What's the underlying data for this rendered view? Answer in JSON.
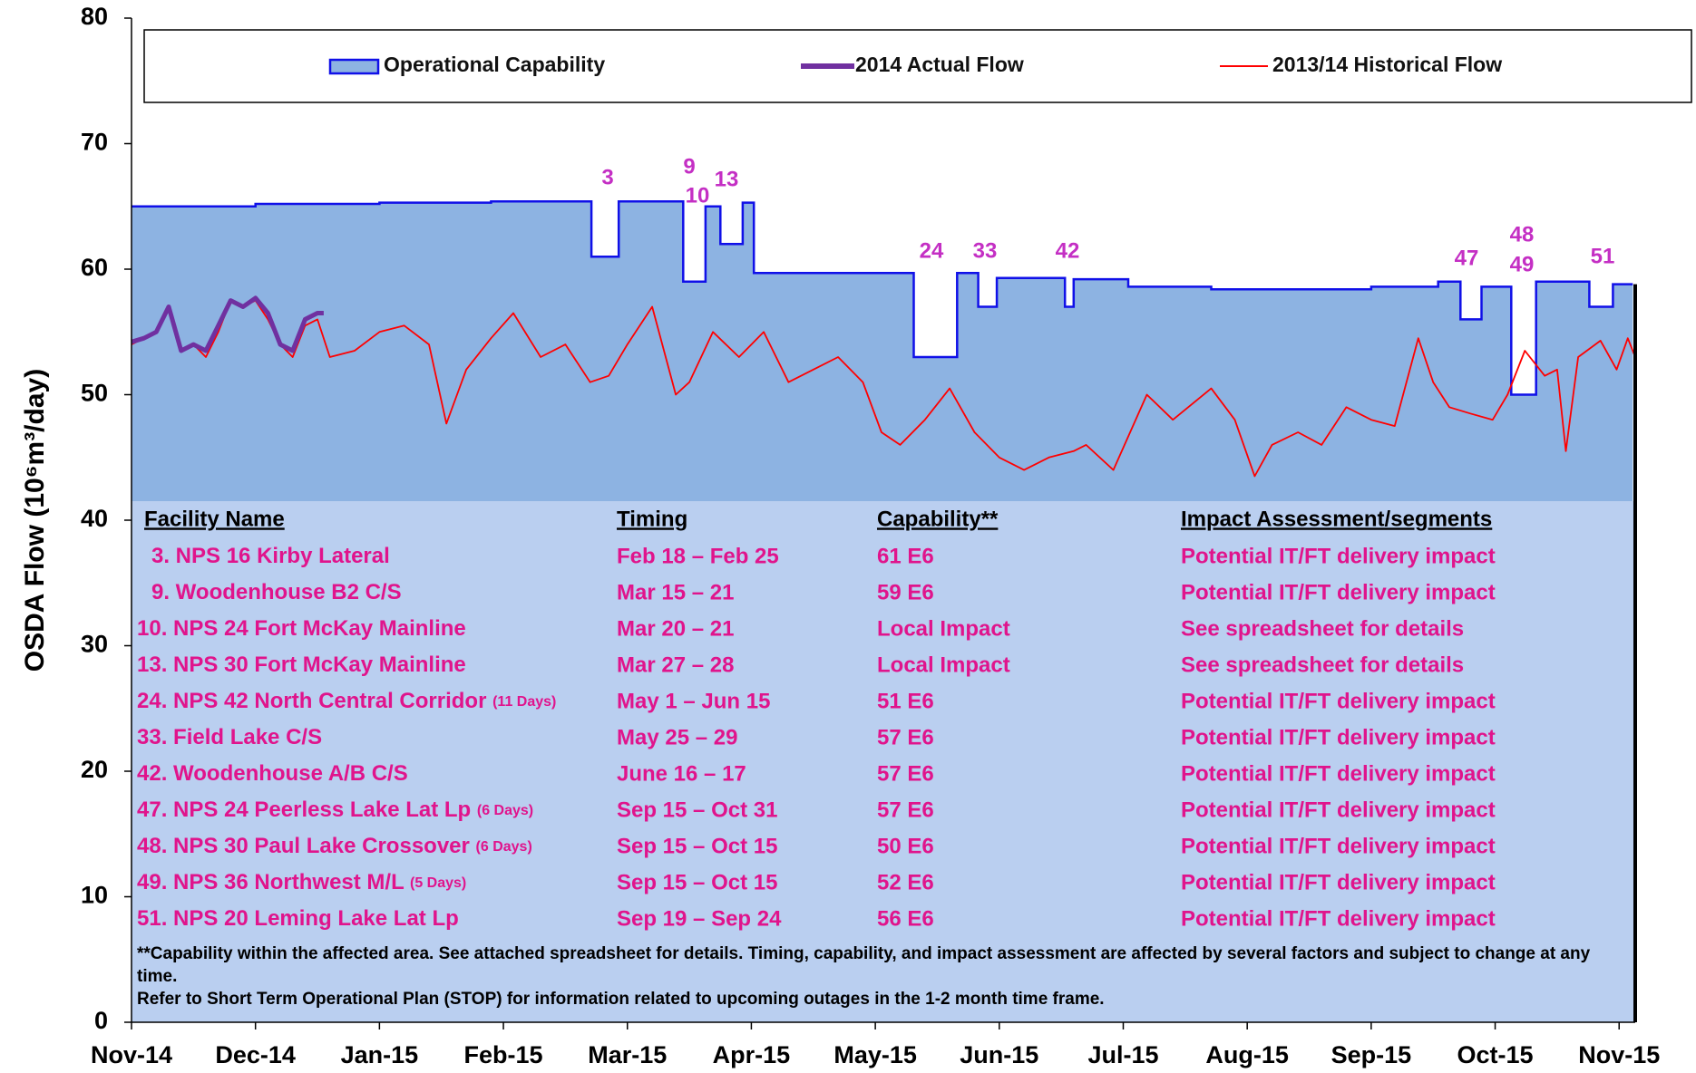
{
  "chart_data": {
    "type": "line",
    "y_label": "OSDA Flow (10⁶m³/day)",
    "xlim": [
      0,
      12.13
    ],
    "xticks": [
      {
        "value": 0,
        "label": "Nov-14"
      },
      {
        "value": 1,
        "label": "Dec-14"
      },
      {
        "value": 2,
        "label": "Jan-15"
      },
      {
        "value": 3,
        "label": "Feb-15"
      },
      {
        "value": 4,
        "label": "Mar-15"
      },
      {
        "value": 5,
        "label": "Apr-15"
      },
      {
        "value": 6,
        "label": "May-15"
      },
      {
        "value": 7,
        "label": "Jun-15"
      },
      {
        "value": 8,
        "label": "Jul-15"
      },
      {
        "value": 9,
        "label": "Aug-15"
      },
      {
        "value": 10,
        "label": "Sep-15"
      },
      {
        "value": 11,
        "label": "Oct-15"
      },
      {
        "value": 12,
        "label": "Nov-15"
      }
    ],
    "ylim": [
      0,
      80
    ],
    "yticks": [
      0,
      10,
      20,
      30,
      40,
      50,
      60,
      70,
      80
    ],
    "series": [
      {
        "name": "Operational Capability",
        "color": "#1010e8",
        "fill": "#8db3e2",
        "kind": "area",
        "x": [
          0,
          1.0,
          1.0,
          2.0,
          2.0,
          2.9,
          2.9,
          3.71,
          3.71,
          3.93,
          3.93,
          4.45,
          4.45,
          4.63,
          4.63,
          4.75,
          4.75,
          4.93,
          4.93,
          5.02,
          5.02,
          6.31,
          6.31,
          6.66,
          6.66,
          6.83,
          6.83,
          6.98,
          6.98,
          7.53,
          7.53,
          7.6,
          7.6,
          8.04,
          8.04,
          8.71,
          8.71,
          10.0,
          10.0,
          10.54,
          10.54,
          10.72,
          10.72,
          10.89,
          10.89,
          11.13,
          11.13,
          11.33,
          11.33,
          11.76,
          11.76,
          11.95,
          11.95,
          12.11
        ],
        "values": [
          65,
          65,
          65.2,
          65.2,
          65.3,
          65.3,
          65.4,
          65.4,
          61,
          61,
          65.4,
          65.4,
          59,
          59,
          65,
          65,
          62,
          62,
          65.3,
          65.3,
          59.7,
          59.7,
          53,
          53,
          59.7,
          59.7,
          57,
          57,
          59.3,
          59.3,
          57,
          57,
          59.2,
          59.2,
          58.6,
          58.6,
          58.4,
          58.4,
          58.6,
          58.6,
          59,
          59,
          56,
          56,
          58.6,
          58.6,
          50,
          50,
          59,
          59,
          57,
          57,
          58.8,
          58.8
        ]
      },
      {
        "name": "2014 Actual Flow",
        "color": "#7030a0",
        "kind": "line",
        "width": 5,
        "x": [
          0,
          0.1,
          0.2,
          0.3,
          0.4,
          0.5,
          0.6,
          0.7,
          0.8,
          0.9,
          1.0,
          1.1,
          1.2,
          1.3,
          1.4,
          1.5,
          1.55
        ],
        "values": [
          54.2,
          54.5,
          55,
          57,
          53.5,
          54,
          53.5,
          55.5,
          57.5,
          57,
          57.7,
          56.5,
          54,
          53.5,
          56,
          56.5,
          56.5
        ]
      },
      {
        "name": "2013/14 Historical Flow",
        "color": "#ff0000",
        "kind": "line",
        "width": 1.8,
        "x": [
          0,
          0.1,
          0.2,
          0.3,
          0.4,
          0.5,
          0.6,
          0.7,
          0.8,
          0.9,
          1.0,
          1.1,
          1.2,
          1.3,
          1.4,
          1.5,
          1.6,
          1.8,
          2.0,
          2.2,
          2.4,
          2.54,
          2.7,
          2.9,
          3.08,
          3.3,
          3.5,
          3.7,
          3.85,
          4.0,
          4.2,
          4.39,
          4.5,
          4.69,
          4.9,
          5.1,
          5.3,
          5.5,
          5.7,
          5.9,
          6.05,
          6.2,
          6.4,
          6.6,
          6.8,
          7.0,
          7.2,
          7.4,
          7.6,
          7.7,
          7.92,
          8.19,
          8.4,
          8.71,
          8.9,
          9.06,
          9.2,
          9.41,
          9.6,
          9.8,
          10.0,
          10.19,
          10.38,
          10.5,
          10.63,
          10.8,
          10.98,
          11.1,
          11.24,
          11.4,
          11.5,
          11.57,
          11.67,
          11.85,
          11.98,
          12.07,
          12.13
        ],
        "values": [
          54,
          54.5,
          55,
          57,
          53.5,
          54,
          53,
          55,
          57.5,
          57,
          57.5,
          56,
          54,
          53,
          55.5,
          56,
          53,
          53.5,
          55,
          55.5,
          54,
          47.7,
          52,
          54.5,
          56.5,
          53,
          54,
          51,
          51.5,
          54,
          57,
          50,
          51,
          55,
          53,
          55,
          51,
          52,
          53,
          51,
          47,
          46,
          48,
          50.5,
          47,
          45,
          44,
          45,
          45.5,
          46,
          44,
          50,
          48,
          50.5,
          48,
          43.5,
          46,
          47,
          46,
          49,
          48,
          47.5,
          54.5,
          51,
          49,
          48.5,
          48,
          50,
          53.5,
          51.5,
          52,
          45.5,
          53,
          54.3,
          52,
          54.5,
          53
        ]
      }
    ],
    "annotations": [
      "3",
      "9",
      "10",
      "13",
      "24",
      "33",
      "42",
      "47",
      "48",
      "49",
      "51"
    ]
  },
  "table": {
    "header": [
      "Facility Name",
      "Timing",
      "Capability**",
      "Impact Assessment/segments"
    ],
    "rows": [
      {
        "name": "3. NPS 16 Kirby Lateral",
        "timing": "Feb 18 – Feb 25",
        "capability": "61 E6",
        "impact": "Potential IT/FT delivery impact"
      },
      {
        "name": "9. Woodenhouse B2 C/S",
        "timing": "Mar 15 – 21",
        "capability": "59 E6",
        "impact": "Potential IT/FT delivery impact"
      },
      {
        "name": "10. NPS 24 Fort McKay Mainline",
        "timing": "Mar 20 – 21",
        "capability": "Local Impact",
        "impact": "See spreadsheet for details"
      },
      {
        "name": "13. NPS 30 Fort McKay Mainline",
        "timing": "Mar 27 – 28",
        "capability": "Local Impact",
        "impact": "See spreadsheet for details"
      },
      {
        "name": "24. NPS 42 North Central Corridor",
        "days": "(11 Days)",
        "timing": "May 1 – Jun 15",
        "capability": "51 E6",
        "impact": "Potential IT/FT delivery impact"
      },
      {
        "name": "33. Field Lake C/S",
        "timing": "May 25 – 29",
        "capability": "57 E6",
        "impact": "Potential IT/FT delivery impact"
      },
      {
        "name": "42. Woodenhouse A/B C/S",
        "timing": "June 16 – 17",
        "capability": "57 E6",
        "impact": "Potential IT/FT delivery impact"
      },
      {
        "name": "47. NPS 24 Peerless Lake Lat Lp",
        "days": "(6 Days)",
        "timing": "Sep 15 – Oct 31",
        "capability": "57 E6",
        "impact": "Potential IT/FT delivery impact"
      },
      {
        "name": "48. NPS 30 Paul Lake Crossover",
        "days": "(6 Days)",
        "timing": "Sep 15 – Oct 15",
        "capability": "50 E6",
        "impact": "Potential IT/FT delivery impact"
      },
      {
        "name": "49. NPS 36 Northwest M/L",
        "days": "(5 Days)",
        "timing": "Sep 15 – Oct 15",
        "capability": "52 E6",
        "impact": "Potential IT/FT delivery impact"
      },
      {
        "name": "51. NPS 20 Leming Lake Lat Lp",
        "timing": "Sep 19 – Sep 24",
        "capability": "56 E6",
        "impact": "Potential IT/FT delivery impact"
      }
    ],
    "footnotes": [
      "**Capability within the affected area.  See attached spreadsheet for details. Timing, capability, and impact assessment are affected by several factors and subject to change at any time.",
      "Refer to Short Term Operational Plan (STOP) for information related to upcoming outages in the 1-2 month time frame."
    ]
  }
}
